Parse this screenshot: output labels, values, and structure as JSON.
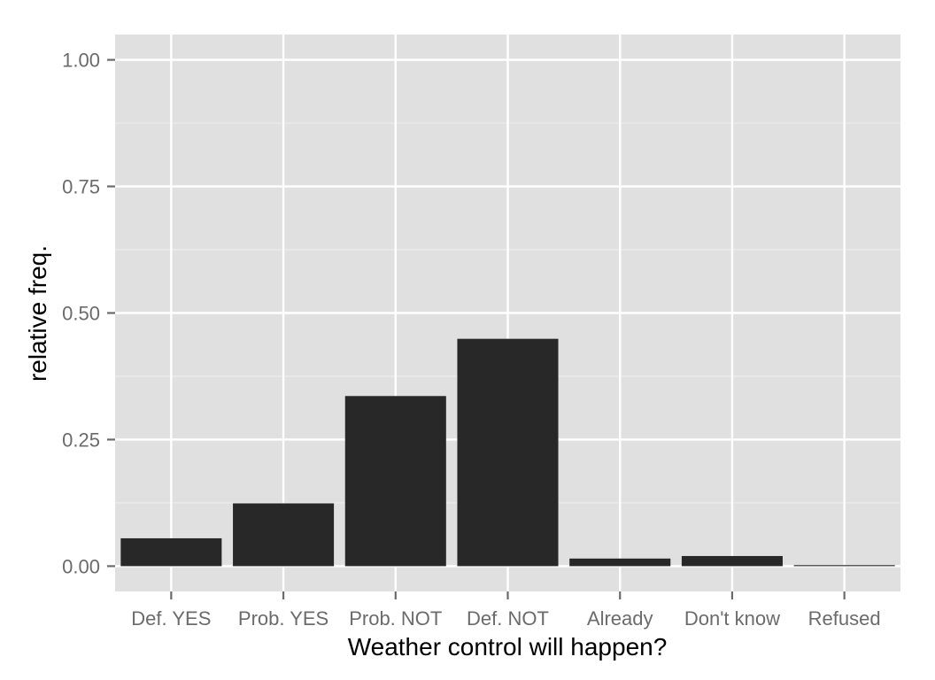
{
  "chart_data": {
    "type": "bar",
    "title": "",
    "xlabel": "Weather control will happen?",
    "ylabel": "relative freq.",
    "categories": [
      "Def. YES",
      "Prob. YES",
      "Prob. NOT",
      "Def. NOT",
      "Already",
      "Don't know",
      "Refused"
    ],
    "values": [
      0.055,
      0.124,
      0.336,
      0.449,
      0.015,
      0.02,
      0.002
    ],
    "ylim": [
      -0.05,
      1.05
    ],
    "yticks": [
      0.0,
      0.25,
      0.5,
      0.75,
      1.0
    ],
    "ytick_labels": [
      "0.00",
      "0.25",
      "0.50",
      "0.75",
      "1.00"
    ],
    "grid": true,
    "legend": "none",
    "colors": {
      "panel": "#e0e0e0",
      "grid_major": "#ffffff",
      "grid_minor": "#ececec",
      "bar": "#282828",
      "tick_text": "#6b6b6b",
      "tick_mark": "#6b6b6b",
      "axis_title": "#000000"
    }
  }
}
